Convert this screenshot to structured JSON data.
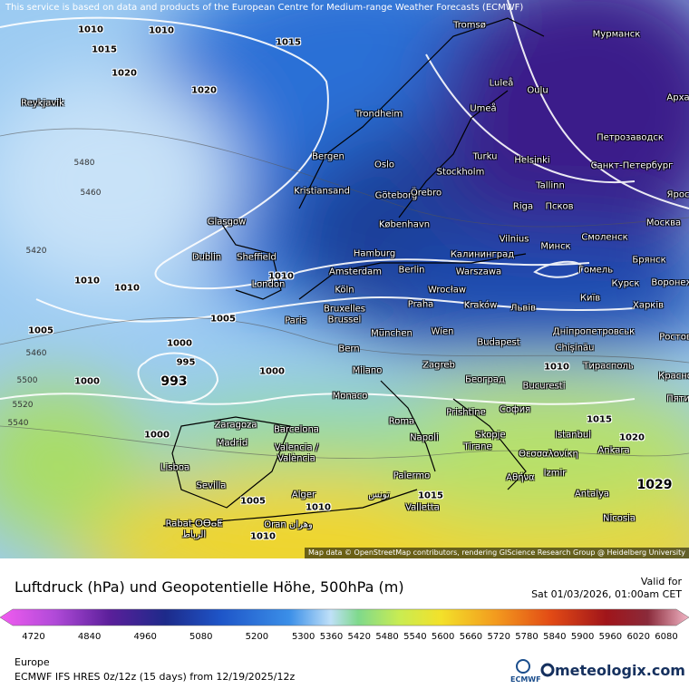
{
  "header": {
    "notice": "This service is based on data and products of the European Centre for Medium-range Weather Forecasts (ECMWF)"
  },
  "map": {
    "cities": [
      "Tromsø",
      "Мурманск",
      "Luleå",
      "Oulu",
      "Арха",
      "Reykjavik",
      "Trondheim",
      "Umeå",
      "Петрозаводск",
      "Bergen",
      "Oslo",
      "Turku",
      "Helsinki",
      "Санкт-Петербург",
      "Stockholm",
      "Kristiansand",
      "Göteborg",
      "Örebro",
      "Tallinn",
      "Ярос",
      "Riga",
      "Псков",
      "Glasgow",
      "København",
      "Москва",
      "Vilnius",
      "Смоленск",
      "Hamburg",
      "Минск",
      "Dublin",
      "Sheffield",
      "Калининград",
      "Брянск",
      "Amsterdam",
      "Berlin",
      "Warszawa",
      "Гомель",
      "London",
      "Köln",
      "Wrocław",
      "Курск",
      "Воронеж",
      "Bruxelles",
      "Brussel",
      "Praha",
      "Kraków",
      "Львів",
      "Київ",
      "Харків",
      "Paris",
      "München",
      "Wien",
      "Дніпропетровськ",
      "Ростов",
      "Chișinău",
      "Budapest",
      "Bern",
      "Тирасполь",
      "Zagreb",
      "Milano",
      "Београд",
      "Bucuresti",
      "Красно",
      "Monaco",
      "Пяти",
      "Prishtine",
      "София",
      "Roma",
      "Zaragoza",
      "Barcelona",
      "Madrid",
      "Skopje",
      "Napoli",
      "Istanbul",
      "Tirane",
      "Ankara",
      "Valencia /",
      "València",
      "Lisboa",
      "Θεσσαλονίκη",
      "Αθήνα",
      "Izmir",
      "Sevilla",
      "Palermo",
      "Antalya",
      "Alger",
      "Valletta",
      "Nicosia",
      "Rabat ⵔⴱⴰⵟ",
      "الرباط",
      "Oran وهران",
      "تونس"
    ],
    "isobar_labels": [
      "1010",
      "1010",
      "1015",
      "1015",
      "1020",
      "1020",
      "1010",
      "1010",
      "1010",
      "1005",
      "1005",
      "1000",
      "1000",
      "1000",
      "995",
      "993",
      "1000",
      "1005",
      "1010",
      "1010",
      "1015",
      "1010",
      "1015",
      "1020",
      "1029",
      "5480",
      "5460",
      "5420",
      "5460",
      "5500",
      "5520",
      "5540"
    ],
    "attribution": "Map data © OpenStreetMap contributors, rendering GIScience Research Group @ Heidelberg University"
  },
  "legend": {
    "title": "Luftdruck (hPa) und Geopotentielle Höhe, 500hPa (m)",
    "valid_label": "Valid for",
    "valid_time": "Sat 01/03/2026, 01:00am CET",
    "ticks": [
      4720,
      4840,
      4960,
      5080,
      5200,
      5300,
      5360,
      5420,
      5480,
      5540,
      5600,
      5660,
      5720,
      5780,
      5840,
      5900,
      5960,
      6020,
      6080
    ]
  },
  "footer": {
    "region": "Europe",
    "model": "ECMWF IFS HRES 0z/12z (15 days) from 12/19/2025/12z",
    "ecmwf": "ECMWF",
    "brand": "meteologix.com"
  }
}
